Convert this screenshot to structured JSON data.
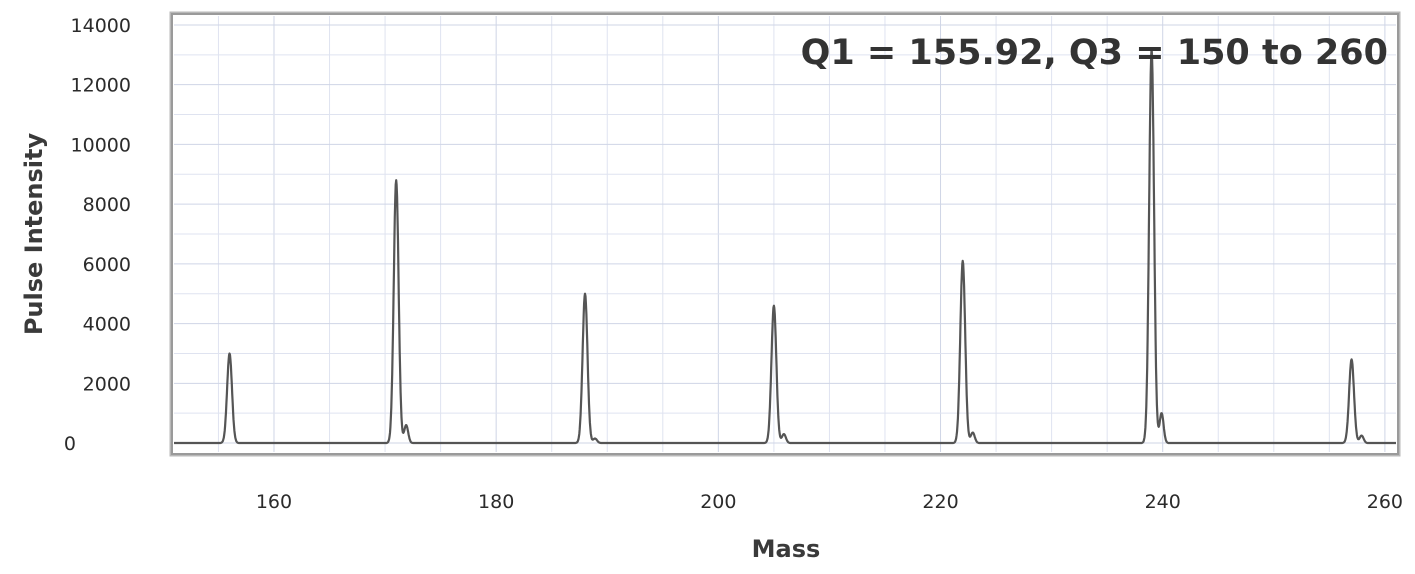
{
  "chart_data": {
    "type": "line",
    "title": "",
    "annotation": "Q1 = 155.92, Q3 = 150 to 260",
    "xlabel": "Mass",
    "ylabel": "Pulse Intensity",
    "xlim": [
      151,
      261
    ],
    "ylim": [
      -300,
      14300
    ],
    "x_ticks": [
      160,
      180,
      200,
      220,
      240,
      260
    ],
    "y_ticks": [
      0,
      2000,
      4000,
      6000,
      8000,
      10000,
      12000,
      14000
    ],
    "grid": true,
    "legend": "none",
    "line_color": "#555555",
    "series": [
      {
        "peaks": [
          {
            "x": 156.0,
            "y": 3000,
            "shoulder": 0
          },
          {
            "x": 171.0,
            "y": 8800,
            "shoulder": 600
          },
          {
            "x": 188.0,
            "y": 5000,
            "shoulder": 150
          },
          {
            "x": 205.0,
            "y": 4600,
            "shoulder": 300
          },
          {
            "x": 222.0,
            "y": 6100,
            "shoulder": 350
          },
          {
            "x": 239.0,
            "y": 13200,
            "shoulder": 1000
          },
          {
            "x": 257.0,
            "y": 2800,
            "shoulder": 250
          }
        ]
      }
    ]
  }
}
